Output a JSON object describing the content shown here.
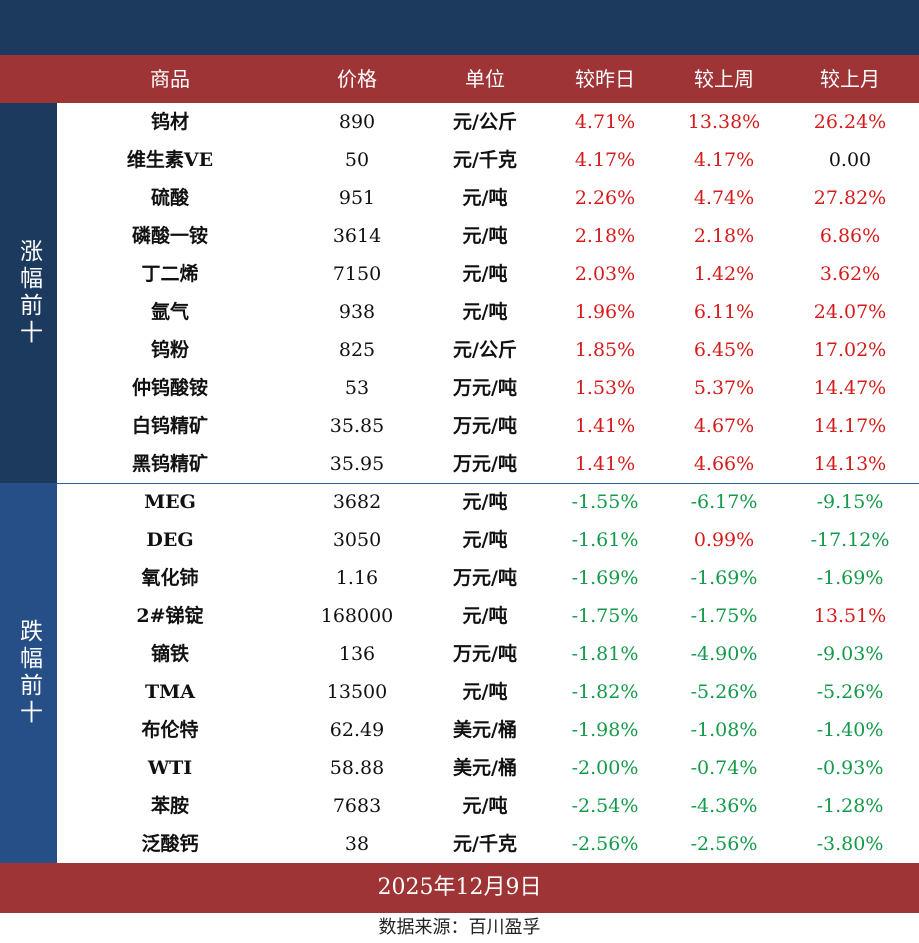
{
  "header": {
    "col_name": "商品",
    "col_price": "价格",
    "col_unit": "单位",
    "col_day": "较昨日",
    "col_week": "较上周",
    "col_month": "较上月"
  },
  "groups": {
    "up_label": "涨幅前十",
    "down_label": "跌幅前十"
  },
  "rows": [
    {
      "name": "钨材",
      "price": "890",
      "unit": "元/公斤",
      "day": "4.71%",
      "week": "13.38%",
      "month": "26.24%",
      "day_s": "pos",
      "week_s": "pos",
      "month_s": "pos"
    },
    {
      "name": "维生素VE",
      "price": "50",
      "unit": "元/千克",
      "day": "4.17%",
      "week": "4.17%",
      "month": "0.00",
      "day_s": "pos",
      "week_s": "pos",
      "month_s": "zero"
    },
    {
      "name": "硫酸",
      "price": "951",
      "unit": "元/吨",
      "day": "2.26%",
      "week": "4.74%",
      "month": "27.82%",
      "day_s": "pos",
      "week_s": "pos",
      "month_s": "pos"
    },
    {
      "name": "磷酸一铵",
      "price": "3614",
      "unit": "元/吨",
      "day": "2.18%",
      "week": "2.18%",
      "month": "6.86%",
      "day_s": "pos",
      "week_s": "pos",
      "month_s": "pos"
    },
    {
      "name": "丁二烯",
      "price": "7150",
      "unit": "元/吨",
      "day": "2.03%",
      "week": "1.42%",
      "month": "3.62%",
      "day_s": "pos",
      "week_s": "pos",
      "month_s": "pos"
    },
    {
      "name": "氩气",
      "price": "938",
      "unit": "元/吨",
      "day": "1.96%",
      "week": "6.11%",
      "month": "24.07%",
      "day_s": "pos",
      "week_s": "pos",
      "month_s": "pos"
    },
    {
      "name": "钨粉",
      "price": "825",
      "unit": "元/公斤",
      "day": "1.85%",
      "week": "6.45%",
      "month": "17.02%",
      "day_s": "pos",
      "week_s": "pos",
      "month_s": "pos"
    },
    {
      "name": "仲钨酸铵",
      "price": "53",
      "unit": "万元/吨",
      "day": "1.53%",
      "week": "5.37%",
      "month": "14.47%",
      "day_s": "pos",
      "week_s": "pos",
      "month_s": "pos"
    },
    {
      "name": "白钨精矿",
      "price": "35.85",
      "unit": "万元/吨",
      "day": "1.41%",
      "week": "4.67%",
      "month": "14.17%",
      "day_s": "pos",
      "week_s": "pos",
      "month_s": "pos"
    },
    {
      "name": "黑钨精矿",
      "price": "35.95",
      "unit": "万元/吨",
      "day": "1.41%",
      "week": "4.66%",
      "month": "14.13%",
      "day_s": "pos",
      "week_s": "pos",
      "month_s": "pos"
    },
    {
      "name": "MEG",
      "price": "3682",
      "unit": "元/吨",
      "day": "-1.55%",
      "week": "-6.17%",
      "month": "-9.15%",
      "day_s": "neg",
      "week_s": "neg",
      "month_s": "neg"
    },
    {
      "name": "DEG",
      "price": "3050",
      "unit": "元/吨",
      "day": "-1.61%",
      "week": "0.99%",
      "month": "-17.12%",
      "day_s": "neg",
      "week_s": "pos",
      "month_s": "neg"
    },
    {
      "name": "氧化铈",
      "price": "1.16",
      "unit": "万元/吨",
      "day": "-1.69%",
      "week": "-1.69%",
      "month": "-1.69%",
      "day_s": "neg",
      "week_s": "neg",
      "month_s": "neg"
    },
    {
      "name": "2#锑锭",
      "price": "168000",
      "unit": "元/吨",
      "day": "-1.75%",
      "week": "-1.75%",
      "month": "13.51%",
      "day_s": "neg",
      "week_s": "neg",
      "month_s": "pos"
    },
    {
      "name": "镝铁",
      "price": "136",
      "unit": "万元/吨",
      "day": "-1.81%",
      "week": "-4.90%",
      "month": "-9.03%",
      "day_s": "neg",
      "week_s": "neg",
      "month_s": "neg"
    },
    {
      "name": "TMA",
      "price": "13500",
      "unit": "元/吨",
      "day": "-1.82%",
      "week": "-5.26%",
      "month": "-5.26%",
      "day_s": "neg",
      "week_s": "neg",
      "month_s": "neg"
    },
    {
      "name": "布伦特",
      "price": "62.49",
      "unit": "美元/桶",
      "day": "-1.98%",
      "week": "-1.08%",
      "month": "-1.40%",
      "day_s": "neg",
      "week_s": "neg",
      "month_s": "neg"
    },
    {
      "name": "WTI",
      "price": "58.88",
      "unit": "美元/桶",
      "day": "-2.00%",
      "week": "-0.74%",
      "month": "-0.93%",
      "day_s": "neg",
      "week_s": "neg",
      "month_s": "neg"
    },
    {
      "name": "苯胺",
      "price": "7683",
      "unit": "元/吨",
      "day": "-2.54%",
      "week": "-4.36%",
      "month": "-1.28%",
      "day_s": "neg",
      "week_s": "neg",
      "month_s": "neg"
    },
    {
      "name": "泛酸钙",
      "price": "38",
      "unit": "元/千克",
      "day": "-2.56%",
      "week": "-2.56%",
      "month": "-3.80%",
      "day_s": "neg",
      "week_s": "neg",
      "month_s": "neg"
    }
  ],
  "footer": {
    "date": "2025年12月9日",
    "source": "数据来源：百川盈孚"
  },
  "colors": {
    "navy": "#1c3a5e",
    "blue": "#254f86",
    "red_bar": "#9e3435",
    "up": "#d41c1c",
    "down": "#149a4a"
  }
}
